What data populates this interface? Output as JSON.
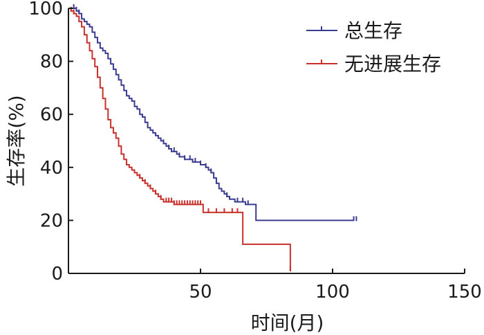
{
  "chart_data": {
    "type": "line",
    "subtype": "kaplan-meier-step",
    "xlabel": "时间(月)",
    "ylabel": "生存率(%)",
    "xlim": [
      0,
      150
    ],
    "ylim": [
      0,
      100
    ],
    "xticks": [
      50,
      100,
      150
    ],
    "yticks": [
      0,
      20,
      40,
      60,
      80,
      100
    ],
    "grid": false,
    "legend_position": "top-right",
    "series": [
      {
        "name": "总生存",
        "color": "#3a3c8f",
        "points": [
          [
            0,
            100
          ],
          [
            2,
            100
          ],
          [
            3,
            99
          ],
          [
            4,
            98
          ],
          [
            5,
            96
          ],
          [
            6,
            95
          ],
          [
            7,
            94
          ],
          [
            8,
            93
          ],
          [
            9,
            91
          ],
          [
            10,
            89
          ],
          [
            11,
            87
          ],
          [
            12,
            85
          ],
          [
            13,
            84
          ],
          [
            14,
            83
          ],
          [
            15,
            81
          ],
          [
            16,
            79
          ],
          [
            17,
            77
          ],
          [
            18,
            75
          ],
          [
            19,
            73
          ],
          [
            20,
            71
          ],
          [
            21,
            69
          ],
          [
            22,
            67
          ],
          [
            23,
            66
          ],
          [
            24,
            65
          ],
          [
            25,
            63
          ],
          [
            26,
            62
          ],
          [
            27,
            60
          ],
          [
            28,
            59
          ],
          [
            29,
            57
          ],
          [
            30,
            55
          ],
          [
            31,
            54
          ],
          [
            32,
            53
          ],
          [
            33,
            52
          ],
          [
            34,
            51
          ],
          [
            35,
            50
          ],
          [
            36,
            49
          ],
          [
            37,
            48
          ],
          [
            38,
            47
          ],
          [
            39,
            46
          ],
          [
            40,
            46
          ],
          [
            41,
            45
          ],
          [
            42,
            44
          ],
          [
            43,
            44
          ],
          [
            44,
            43
          ],
          [
            45,
            43
          ],
          [
            46,
            43
          ],
          [
            47,
            42
          ],
          [
            48,
            42
          ],
          [
            49,
            42
          ],
          [
            50,
            41
          ],
          [
            51,
            41
          ],
          [
            52,
            40
          ],
          [
            53,
            39
          ],
          [
            54,
            38
          ],
          [
            55,
            36
          ],
          [
            56,
            34
          ],
          [
            57,
            32
          ],
          [
            58,
            31
          ],
          [
            59,
            30
          ],
          [
            60,
            29
          ],
          [
            61,
            28
          ],
          [
            63,
            27
          ],
          [
            66,
            27
          ],
          [
            67,
            26
          ],
          [
            71,
            26
          ],
          [
            71,
            20
          ],
          [
            108,
            20
          ]
        ],
        "censor_marks": [
          2,
          3,
          4,
          36,
          38,
          40,
          42,
          44,
          46,
          48,
          50,
          52,
          54,
          56,
          60,
          64,
          66,
          68,
          108,
          109
        ]
      },
      {
        "name": "无进展生存",
        "color": "#c8312b",
        "points": [
          [
            0,
            100
          ],
          [
            1,
            99
          ],
          [
            2,
            98
          ],
          [
            3,
            97
          ],
          [
            4,
            95
          ],
          [
            5,
            93
          ],
          [
            6,
            90
          ],
          [
            7,
            87
          ],
          [
            8,
            84
          ],
          [
            9,
            81
          ],
          [
            10,
            78
          ],
          [
            11,
            74
          ],
          [
            12,
            70
          ],
          [
            13,
            66
          ],
          [
            14,
            62
          ],
          [
            15,
            58
          ],
          [
            16,
            55
          ],
          [
            17,
            53
          ],
          [
            18,
            51
          ],
          [
            19,
            48
          ],
          [
            20,
            45
          ],
          [
            21,
            43
          ],
          [
            22,
            41
          ],
          [
            23,
            40
          ],
          [
            24,
            39
          ],
          [
            25,
            38
          ],
          [
            26,
            37
          ],
          [
            27,
            36
          ],
          [
            28,
            35
          ],
          [
            29,
            34
          ],
          [
            30,
            33
          ],
          [
            31,
            32
          ],
          [
            32,
            31
          ],
          [
            33,
            30
          ],
          [
            34,
            29
          ],
          [
            35,
            28
          ],
          [
            36,
            27
          ],
          [
            38,
            27
          ],
          [
            40,
            26
          ],
          [
            50,
            26
          ],
          [
            51,
            23
          ],
          [
            65,
            23
          ],
          [
            66,
            11
          ],
          [
            84,
            11
          ],
          [
            84,
            1
          ]
        ],
        "censor_marks": [
          1,
          2,
          27,
          29,
          31,
          33,
          35,
          37,
          38,
          39,
          40,
          41,
          42,
          43,
          44,
          45,
          46,
          47,
          48,
          49,
          50,
          53,
          56,
          59,
          62,
          64,
          84
        ]
      }
    ]
  }
}
